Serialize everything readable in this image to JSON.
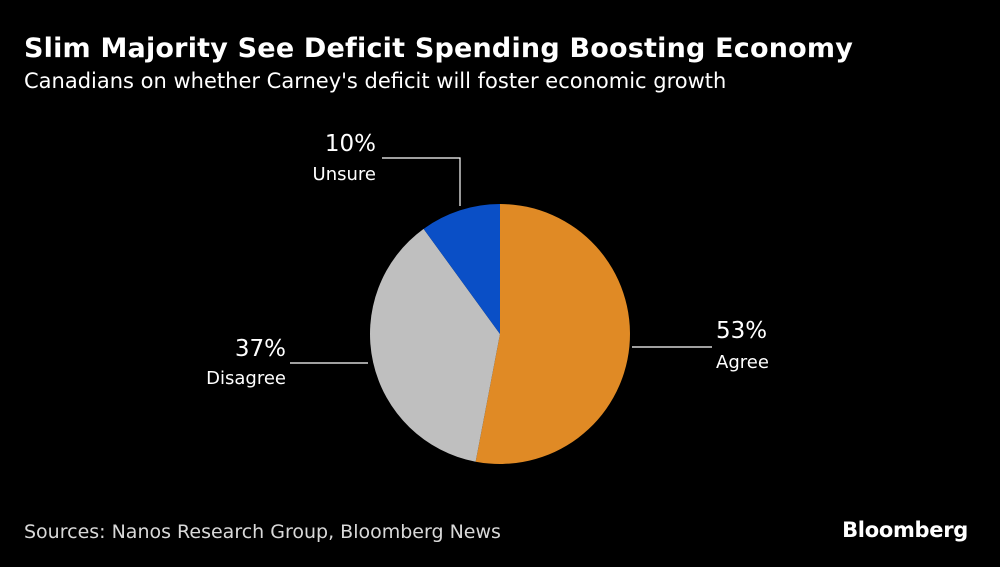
{
  "header": {
    "title": "Slim Majority See Deficit Spending Boosting Economy",
    "subtitle": "Canadians on whether Carney's deficit will foster economic growth"
  },
  "footer": {
    "source": "Sources: Nanos Research Group, Bloomberg News",
    "brand": "Bloomberg"
  },
  "chart_data": {
    "type": "pie",
    "title": "Slim Majority See Deficit Spending Boosting Economy",
    "subtitle": "Canadians on whether Carney's deficit will foster economic growth",
    "slices": [
      {
        "label": "Agree",
        "value": 53,
        "display": "53%",
        "color": "#e08a25"
      },
      {
        "label": "Disagree",
        "value": 37,
        "display": "37%",
        "color": "#bfbfbf"
      },
      {
        "label": "Unsure",
        "value": 10,
        "display": "10%",
        "color": "#0a4fc6"
      }
    ]
  }
}
